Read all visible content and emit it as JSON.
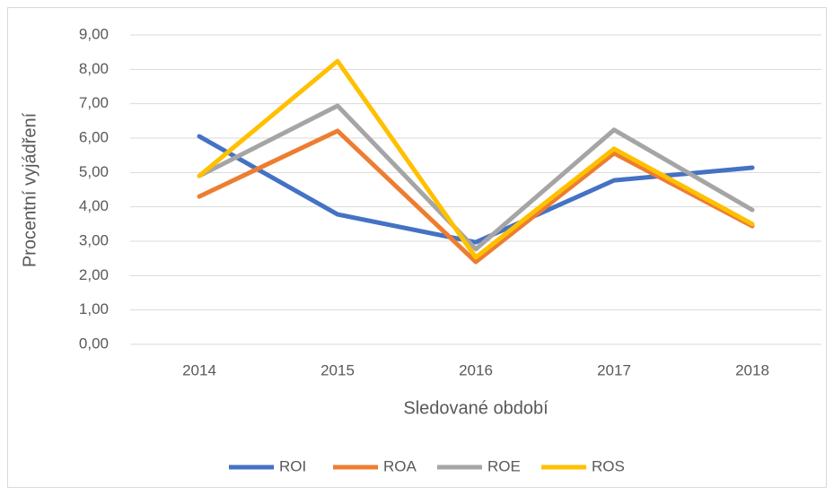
{
  "chart_data": {
    "type": "line",
    "x_label": "Sledované období",
    "y_label": "Procentní vyjádření",
    "categories": [
      "2014",
      "2015",
      "2016",
      "2017",
      "2018"
    ],
    "series": [
      {
        "name": "ROI",
        "color": "#4472c4",
        "values": [
          6.05,
          3.78,
          2.97,
          4.77,
          5.14
        ]
      },
      {
        "name": "ROA",
        "color": "#ed7d31",
        "values": [
          4.3,
          6.21,
          2.4,
          5.56,
          3.44
        ]
      },
      {
        "name": "ROE",
        "color": "#a5a5a5",
        "values": [
          4.9,
          6.94,
          2.77,
          6.24,
          3.91
        ]
      },
      {
        "name": "ROS",
        "color": "#ffc000",
        "values": [
          4.9,
          8.24,
          2.53,
          5.69,
          3.5
        ]
      }
    ],
    "ylim": [
      0,
      9
    ],
    "yticks": [
      {
        "value": 0,
        "label": "0,00"
      },
      {
        "value": 1,
        "label": "1,00"
      },
      {
        "value": 2,
        "label": "2,00"
      },
      {
        "value": 3,
        "label": "3,00"
      },
      {
        "value": 4,
        "label": "4,00"
      },
      {
        "value": 5,
        "label": "5,00"
      },
      {
        "value": 6,
        "label": "6,00"
      },
      {
        "value": 7,
        "label": "7,00"
      },
      {
        "value": 8,
        "label": "8,00"
      },
      {
        "value": 9,
        "label": "9,00"
      }
    ],
    "grid": true,
    "legend": "bottom"
  }
}
